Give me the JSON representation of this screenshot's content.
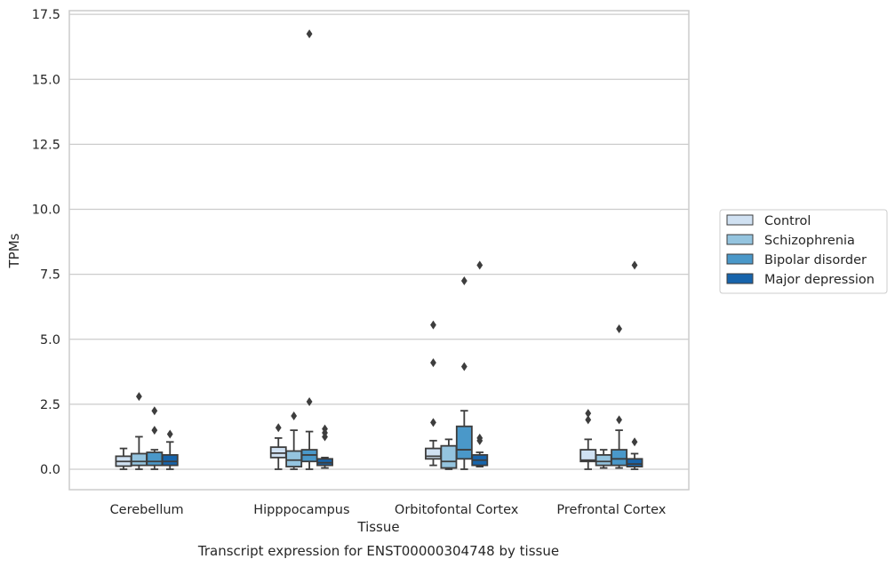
{
  "chart_data": {
    "type": "box",
    "title": "",
    "caption": "Transcript expression for ENST00000304748 by tissue",
    "xlabel": "Tissue",
    "ylabel": "TPMs",
    "ylim": [
      -0.4,
      17.6
    ],
    "yticks": [
      "0.0",
      "2.5",
      "5.0",
      "7.5",
      "10.0",
      "12.5",
      "15.0",
      "17.5"
    ],
    "grid": "horizontal",
    "legend_position": "right",
    "categories": [
      "Cerebellum",
      "Hipppocampus",
      "Orbitofontal Cortex",
      "Prefrontal Cortex"
    ],
    "series": [
      {
        "name": "Control",
        "color": "#d0e1f2",
        "boxes": [
          {
            "whislo": 0.0,
            "q1": 0.12,
            "med": 0.3,
            "q3": 0.5,
            "whishi": 0.8,
            "fliers": []
          },
          {
            "whislo": 0.0,
            "q1": 0.45,
            "med": 0.62,
            "q3": 0.85,
            "whishi": 1.2,
            "fliers": [
              1.6
            ]
          },
          {
            "whislo": 0.15,
            "q1": 0.4,
            "med": 0.5,
            "q3": 0.8,
            "whishi": 1.1,
            "fliers": [
              1.8,
              4.1,
              5.55
            ]
          },
          {
            "whislo": 0.0,
            "q1": 0.3,
            "med": 0.35,
            "q3": 0.75,
            "whishi": 1.15,
            "fliers": [
              1.9,
              2.15
            ]
          }
        ]
      },
      {
        "name": "Schizophrenia",
        "color": "#94c4df",
        "boxes": [
          {
            "whislo": 0.0,
            "q1": 0.15,
            "med": 0.3,
            "q3": 0.6,
            "whishi": 1.25,
            "fliers": [
              2.8
            ]
          },
          {
            "whislo": 0.0,
            "q1": 0.1,
            "med": 0.35,
            "q3": 0.7,
            "whishi": 1.5,
            "fliers": [
              2.05
            ]
          },
          {
            "whislo": 0.0,
            "q1": 0.05,
            "med": 0.3,
            "q3": 0.9,
            "whishi": 1.15,
            "fliers": []
          },
          {
            "whislo": 0.05,
            "q1": 0.15,
            "med": 0.3,
            "q3": 0.55,
            "whishi": 0.75,
            "fliers": []
          }
        ]
      },
      {
        "name": "Bipolar disorder",
        "color": "#4a98c9",
        "boxes": [
          {
            "whislo": 0.0,
            "q1": 0.15,
            "med": 0.3,
            "q3": 0.65,
            "whishi": 0.75,
            "fliers": [
              1.5,
              2.25
            ]
          },
          {
            "whislo": 0.0,
            "q1": 0.3,
            "med": 0.55,
            "q3": 0.75,
            "whishi": 1.45,
            "fliers": [
              2.6,
              16.75
            ]
          },
          {
            "whislo": 0.0,
            "q1": 0.4,
            "med": 0.75,
            "q3": 1.65,
            "whishi": 2.25,
            "fliers": [
              3.95,
              7.25
            ]
          },
          {
            "whislo": 0.05,
            "q1": 0.15,
            "med": 0.4,
            "q3": 0.75,
            "whishi": 1.5,
            "fliers": [
              1.9,
              5.4
            ]
          }
        ]
      },
      {
        "name": "Major depression",
        "color": "#1764ab",
        "boxes": [
          {
            "whislo": 0.0,
            "q1": 0.15,
            "med": 0.3,
            "q3": 0.55,
            "whishi": 1.05,
            "fliers": [
              1.35
            ]
          },
          {
            "whislo": 0.05,
            "q1": 0.15,
            "med": 0.25,
            "q3": 0.4,
            "whishi": 0.45,
            "fliers": [
              1.25,
              1.4,
              1.55
            ]
          },
          {
            "whislo": 0.1,
            "q1": 0.15,
            "med": 0.35,
            "q3": 0.55,
            "whishi": 0.65,
            "fliers": [
              1.1,
              1.2,
              7.85
            ]
          },
          {
            "whislo": 0.0,
            "q1": 0.1,
            "med": 0.2,
            "q3": 0.4,
            "whishi": 0.6,
            "fliers": [
              1.05,
              7.85
            ]
          }
        ]
      }
    ]
  }
}
